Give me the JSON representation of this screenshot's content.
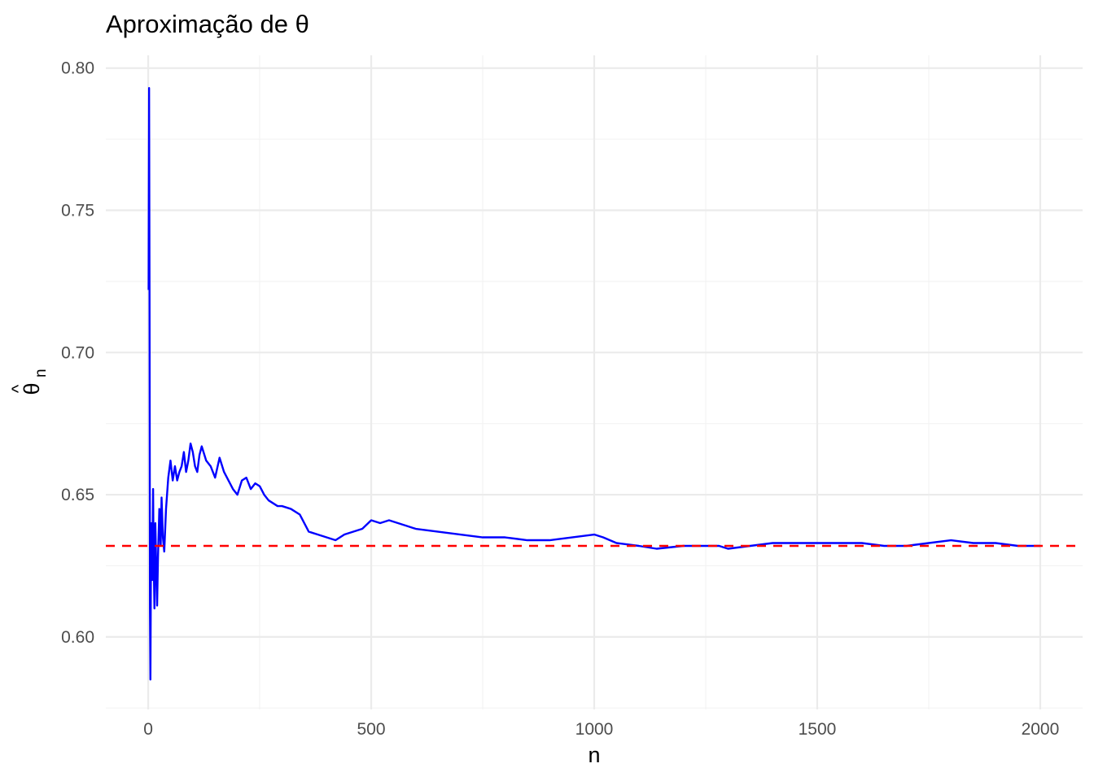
{
  "chart_data": {
    "type": "line",
    "title": "Aproximação de θ",
    "xlabel": "n",
    "ylabel_main": "θ",
    "ylabel_hat": "^",
    "ylabel_sub": "n",
    "xlim": [
      -95,
      2095
    ],
    "ylim": [
      0.5745,
      0.8045
    ],
    "x_ticks": [
      0,
      500,
      1000,
      1500,
      2000
    ],
    "x_tick_labels": [
      "0",
      "500",
      "1000",
      "1500",
      "2000"
    ],
    "y_ticks": [
      0.6,
      0.65,
      0.7,
      0.75,
      0.8
    ],
    "y_tick_labels": [
      "0.60",
      "0.65",
      "0.70",
      "0.75",
      "0.80"
    ],
    "grid": true,
    "reference_line": {
      "y": 0.632,
      "style": "dashed",
      "color": "#ff0000"
    },
    "series": [
      {
        "color": "#0000ff",
        "x": [
          1,
          2,
          3,
          4,
          5,
          6,
          7,
          8,
          9,
          10,
          11,
          12,
          14,
          16,
          18,
          20,
          22,
          25,
          28,
          30,
          33,
          36,
          40,
          45,
          50,
          55,
          60,
          65,
          70,
          75,
          80,
          85,
          90,
          95,
          100,
          105,
          110,
          115,
          120,
          130,
          140,
          150,
          160,
          170,
          180,
          190,
          200,
          210,
          220,
          230,
          240,
          250,
          260,
          270,
          280,
          290,
          300,
          320,
          340,
          360,
          380,
          400,
          420,
          440,
          460,
          480,
          500,
          520,
          540,
          560,
          580,
          600,
          650,
          700,
          750,
          800,
          850,
          900,
          950,
          1000,
          1020,
          1050,
          1100,
          1140,
          1200,
          1250,
          1280,
          1300,
          1350,
          1400,
          1450,
          1500,
          1550,
          1600,
          1650,
          1700,
          1750,
          1800,
          1850,
          1900,
          1950,
          2000
        ],
        "y": [
          0.722,
          0.793,
          0.72,
          0.61,
          0.585,
          0.62,
          0.64,
          0.628,
          0.62,
          0.635,
          0.652,
          0.63,
          0.61,
          0.64,
          0.625,
          0.611,
          0.628,
          0.645,
          0.632,
          0.649,
          0.635,
          0.63,
          0.645,
          0.656,
          0.662,
          0.655,
          0.66,
          0.655,
          0.658,
          0.66,
          0.665,
          0.658,
          0.662,
          0.668,
          0.665,
          0.66,
          0.658,
          0.664,
          0.667,
          0.662,
          0.66,
          0.656,
          0.663,
          0.658,
          0.655,
          0.652,
          0.65,
          0.655,
          0.656,
          0.652,
          0.654,
          0.653,
          0.65,
          0.648,
          0.647,
          0.646,
          0.646,
          0.645,
          0.643,
          0.637,
          0.636,
          0.635,
          0.634,
          0.636,
          0.637,
          0.638,
          0.641,
          0.64,
          0.641,
          0.64,
          0.639,
          0.638,
          0.637,
          0.636,
          0.635,
          0.635,
          0.634,
          0.634,
          0.635,
          0.636,
          0.635,
          0.633,
          0.632,
          0.631,
          0.632,
          0.632,
          0.632,
          0.631,
          0.632,
          0.633,
          0.633,
          0.633,
          0.633,
          0.633,
          0.632,
          0.632,
          0.633,
          0.634,
          0.633,
          0.633,
          0.632,
          0.632
        ]
      }
    ]
  }
}
